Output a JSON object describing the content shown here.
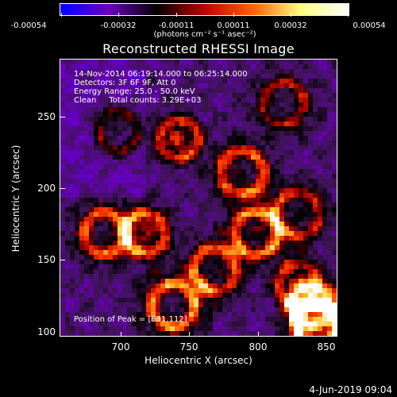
{
  "colorbar": {
    "ticks": [
      "-0.00054",
      "-0.00032",
      "-0.00011",
      "0.00011",
      "0.00032",
      "0.00054"
    ],
    "unit": "(photons cm⁻² s⁻¹ asec⁻²)",
    "colors": [
      "#0000ff",
      "#6a00c0",
      "#000000",
      "#c00000",
      "#ff6000",
      "#ffff80",
      "#ffffff"
    ]
  },
  "title": "Reconstructed RHESSI Image",
  "info": {
    "time": "14-Nov-2014 06:19:14.000 to 06:25:14.000",
    "detectors": "Detectors: 3F 6F 9F, Att 0",
    "energy": "Energy Range: 25.0 - 50.0 keV",
    "clean": "Clean     Total counts: 3.29E+03"
  },
  "peak": "Position of Peak = [831,112]",
  "axes": {
    "xlabel": "Heliocentric X (arcsec)",
    "ylabel": "Heliocentric Y (arcsec)",
    "xticks": [
      "700",
      "750",
      "800",
      "850"
    ],
    "yticks": [
      "250",
      "200",
      "150",
      "100"
    ],
    "xrange": [
      660,
      850
    ],
    "yrange": [
      98,
      288
    ]
  },
  "date_stamp": "4-Jun-2019 09:04"
}
